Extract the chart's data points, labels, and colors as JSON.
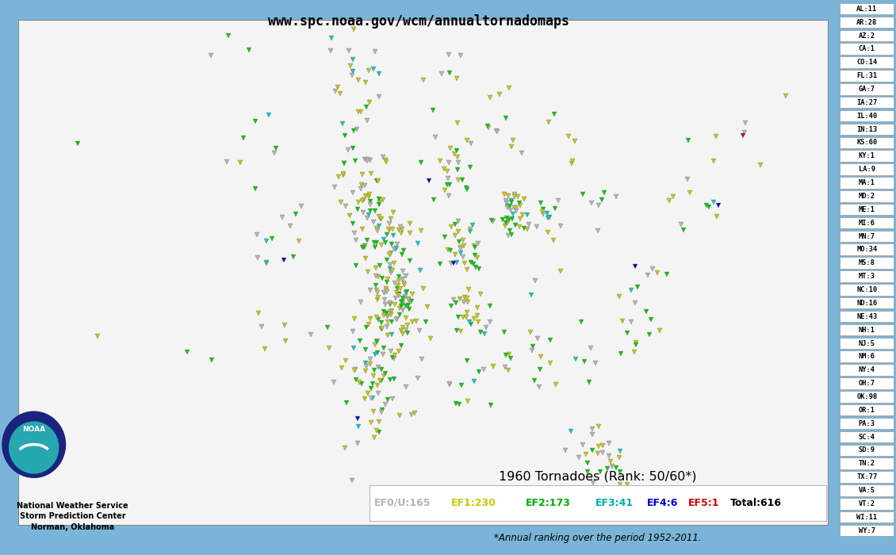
{
  "title": "www.spc.noaa.gov/wcm/annualtornadomaps",
  "year": "1960",
  "rank": "50/60*",
  "subtitle": "*Annual ranking over the period 1952-2011.",
  "legend_title": "1960 Tornadoes (Rank: 50/60*)",
  "ef_colors": {
    "EF0/U": "#b4b4b4",
    "EF1": "#c8c800",
    "EF2": "#00c800",
    "EF3": "#00c8c8",
    "EF4": "#0000c8",
    "EF5": "#c80000"
  },
  "ef_entries": [
    [
      "EF0/U:165",
      "#b4b4b4"
    ],
    [
      "EF1:230",
      "#c8c800"
    ],
    [
      "EF2:173",
      "#00aa00"
    ],
    [
      "EF3:41",
      "#00aaaa"
    ],
    [
      "EF4:6",
      "#0000cc"
    ],
    [
      "EF5:1",
      "#cc0000"
    ],
    [
      "Total:616",
      "#000000"
    ]
  ],
  "state_counts": [
    [
      "AL",
      11
    ],
    [
      "AR",
      28
    ],
    [
      "AZ",
      2
    ],
    [
      "CA",
      1
    ],
    [
      "CO",
      14
    ],
    [
      "FL",
      31
    ],
    [
      "GA",
      7
    ],
    [
      "IA",
      27
    ],
    [
      "IL",
      40
    ],
    [
      "IN",
      13
    ],
    [
      "KS",
      60
    ],
    [
      "KY",
      1
    ],
    [
      "LA",
      9
    ],
    [
      "MA",
      1
    ],
    [
      "MD",
      2
    ],
    [
      "ME",
      1
    ],
    [
      "MI",
      6
    ],
    [
      "MN",
      7
    ],
    [
      "MO",
      34
    ],
    [
      "MS",
      8
    ],
    [
      "MT",
      3
    ],
    [
      "NC",
      10
    ],
    [
      "ND",
      16
    ],
    [
      "NE",
      43
    ],
    [
      "NH",
      1
    ],
    [
      "NJ",
      5
    ],
    [
      "NM",
      6
    ],
    [
      "NY",
      4
    ],
    [
      "OH",
      7
    ],
    [
      "OK",
      98
    ],
    [
      "OR",
      1
    ],
    [
      "PA",
      3
    ],
    [
      "SC",
      4
    ],
    [
      "SD",
      9
    ],
    [
      "TN",
      2
    ],
    [
      "TX",
      77
    ],
    [
      "VA",
      5
    ],
    [
      "VT",
      2
    ],
    [
      "WI",
      11
    ],
    [
      "WY",
      7
    ]
  ],
  "background_ocean": "#7ab4d8",
  "state_fill": "#ffffff",
  "state_edge": "#808080",
  "noaa_text": "National Weather Service\nStorm Prediction Center\nNorman, Oklahoma",
  "legend_box_color": "#c8dcf0",
  "legend_inner_color": "#ffffff",
  "right_panel_bg": "#7ab4d8",
  "right_panel_box_bg": "#ffffff",
  "right_panel_box_border": "#999999"
}
